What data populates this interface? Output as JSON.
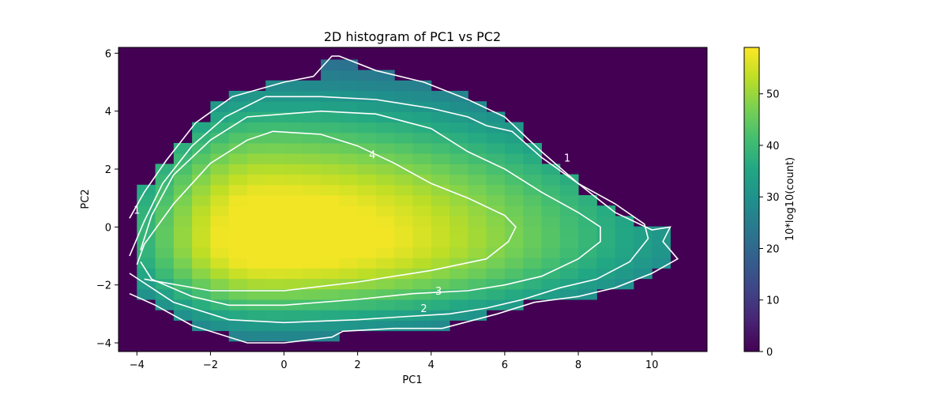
{
  "chart_data": {
    "type": "heatmap",
    "title": "2D histogram of PC1 vs PC2",
    "xlabel": "PC1",
    "ylabel": "PC2",
    "xlim": [
      -4.5,
      11.5
    ],
    "ylim": [
      -4.3,
      6.2
    ],
    "x_ticks": [
      -4,
      -2,
      0,
      2,
      4,
      6,
      8,
      10
    ],
    "y_ticks": [
      -4,
      -2,
      0,
      2,
      4,
      6
    ],
    "x_tick_labels": [
      "−4",
      "−2",
      "0",
      "2",
      "4",
      "6",
      "8",
      "10"
    ],
    "y_tick_labels": [
      "−4",
      "−2",
      "0",
      "2",
      "4",
      "6"
    ],
    "colorbar": {
      "label": "10*log10(count)",
      "range": [
        0,
        59
      ],
      "ticks": [
        0,
        10,
        20,
        30,
        40,
        50
      ],
      "tick_labels": [
        "0",
        "10",
        "20",
        "30",
        "40",
        "50"
      ],
      "colormap": "viridis"
    },
    "grid": false,
    "density_peak": {
      "x": -0.5,
      "y": -0.4,
      "value": 58
    },
    "contours": [
      {
        "level": "1",
        "label": "1",
        "points": [
          [
            -4.2,
            0.3
          ],
          [
            -3.8,
            1.2
          ],
          [
            -3.2,
            2.3
          ],
          [
            -2.4,
            3.6
          ],
          [
            -1.4,
            4.5
          ],
          [
            0,
            5.0
          ],
          [
            0.8,
            5.2
          ],
          [
            1.3,
            5.9
          ],
          [
            1.5,
            5.9
          ],
          [
            2.5,
            5.4
          ],
          [
            3.8,
            5.0
          ],
          [
            5.0,
            4.4
          ],
          [
            6.0,
            3.8
          ],
          [
            7.0,
            2.6
          ],
          [
            8.0,
            1.5
          ],
          [
            9.0,
            0.5
          ],
          [
            10.0,
            -0.1
          ],
          [
            10.5,
            0
          ],
          [
            10.3,
            -0.5
          ],
          [
            10.7,
            -1.1
          ],
          [
            10.0,
            -1.6
          ],
          [
            9.0,
            -2.1
          ],
          [
            8.0,
            -2.4
          ],
          [
            6.8,
            -2.6
          ],
          [
            5.8,
            -3.0
          ],
          [
            4.3,
            -3.5
          ],
          [
            3.0,
            -3.5
          ],
          [
            1.6,
            -3.6
          ],
          [
            1.3,
            -3.8
          ],
          [
            0,
            -4.0
          ],
          [
            -1.0,
            -4.0
          ],
          [
            -2.5,
            -3.4
          ],
          [
            -3.5,
            -2.7
          ],
          [
            -4.2,
            -2.3
          ]
        ]
      },
      {
        "level": "2",
        "label": "2",
        "points": [
          [
            -4.2,
            -1.0
          ],
          [
            -3.8,
            0.2
          ],
          [
            -3.3,
            1.5
          ],
          [
            -2.5,
            2.8
          ],
          [
            -1.6,
            3.8
          ],
          [
            -0.5,
            4.5
          ],
          [
            1.0,
            4.5
          ],
          [
            2.5,
            4.4
          ],
          [
            4.0,
            4.1
          ],
          [
            5.0,
            3.8
          ],
          [
            5.5,
            3.5
          ],
          [
            6.2,
            3.3
          ],
          [
            7.0,
            2.4
          ],
          [
            8.0,
            1.5
          ],
          [
            9.0,
            0.8
          ],
          [
            9.8,
            0.1
          ],
          [
            9.9,
            -0.4
          ],
          [
            9.4,
            -1.2
          ],
          [
            8.5,
            -1.8
          ],
          [
            7.5,
            -2.1
          ],
          [
            6.5,
            -2.5
          ],
          [
            5.5,
            -2.8
          ],
          [
            4.5,
            -3.0
          ],
          [
            3.2,
            -3.1
          ],
          [
            2.0,
            -3.2
          ],
          [
            0,
            -3.3
          ],
          [
            -1.5,
            -3.2
          ],
          [
            -3.0,
            -2.6
          ],
          [
            -4.2,
            -1.6
          ]
        ]
      },
      {
        "level": "3",
        "label": "3",
        "points": [
          [
            -3.9,
            -0.8
          ],
          [
            -3.6,
            0.4
          ],
          [
            -3.0,
            1.8
          ],
          [
            -2.0,
            3.0
          ],
          [
            -1.0,
            3.8
          ],
          [
            1.0,
            4.0
          ],
          [
            2.5,
            3.9
          ],
          [
            4.0,
            3.4
          ],
          [
            5.0,
            2.6
          ],
          [
            6.0,
            2.0
          ],
          [
            7.0,
            1.2
          ],
          [
            8.0,
            0.5
          ],
          [
            8.6,
            0
          ],
          [
            8.6,
            -0.5
          ],
          [
            8.0,
            -1.1
          ],
          [
            7.0,
            -1.7
          ],
          [
            6.0,
            -2.0
          ],
          [
            5.0,
            -2.2
          ],
          [
            3.5,
            -2.3
          ],
          [
            2.0,
            -2.5
          ],
          [
            0,
            -2.7
          ],
          [
            -1.5,
            -2.7
          ],
          [
            -2.5,
            -2.4
          ],
          [
            -3.6,
            -1.8
          ],
          [
            -3.9,
            -1.2
          ]
        ]
      },
      {
        "level": "4",
        "label": "4",
        "points": [
          [
            -4.0,
            -1.3
          ],
          [
            -3.8,
            -0.6
          ],
          [
            -3.0,
            0.8
          ],
          [
            -2.0,
            2.2
          ],
          [
            -1.0,
            3.0
          ],
          [
            -0.3,
            3.3
          ],
          [
            1.0,
            3.2
          ],
          [
            2.0,
            2.8
          ],
          [
            3.0,
            2.2
          ],
          [
            4.0,
            1.5
          ],
          [
            5.0,
            1.0
          ],
          [
            6.0,
            0.4
          ],
          [
            6.3,
            0
          ],
          [
            6.1,
            -0.5
          ],
          [
            5.5,
            -1.1
          ],
          [
            4.0,
            -1.5
          ],
          [
            2.0,
            -1.9
          ],
          [
            0,
            -2.2
          ],
          [
            -2.0,
            -2.2
          ],
          [
            -3.8,
            -1.8
          ]
        ]
      }
    ]
  }
}
